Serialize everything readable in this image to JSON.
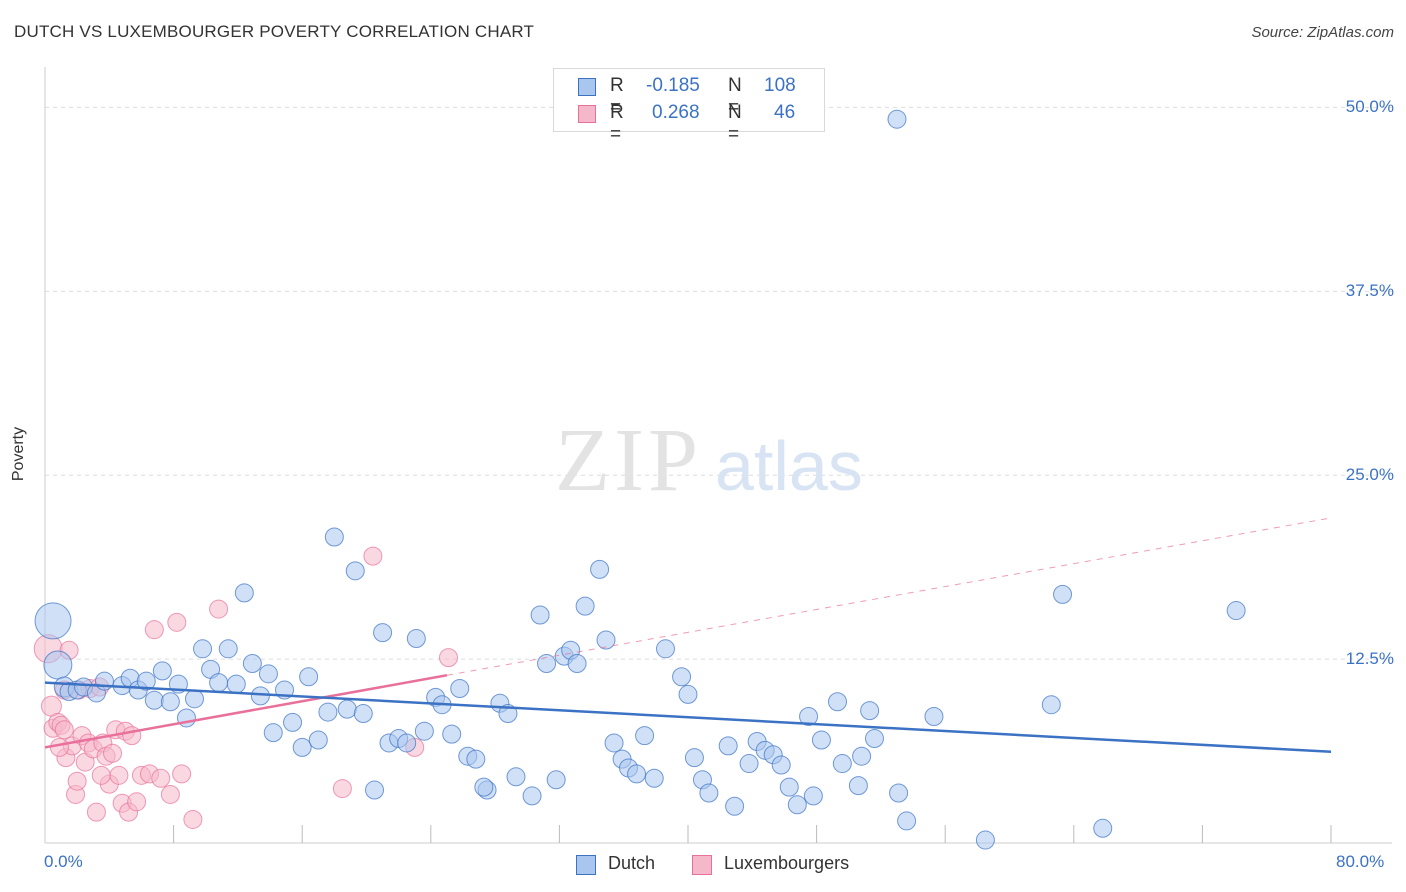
{
  "title": "DUTCH VS LUXEMBOURGER POVERTY CORRELATION CHART",
  "source": "Source: ZipAtlas.com",
  "watermark": {
    "zip": "ZIP",
    "atlas": "atlas"
  },
  "colors": {
    "dutch": "#3b72c4",
    "dutch_fill": "#a9c6ee",
    "lux": "#e8709a",
    "lux_fill": "#f5b8cb",
    "axis_text": "#3b72c4"
  },
  "stats": {
    "dutch": {
      "r_label": "R =",
      "r_value": "-0.185",
      "n_label": "N =",
      "n_value": "108"
    },
    "lux": {
      "r_label": "R =",
      "r_value": "0.268",
      "n_label": "N =",
      "n_value": "46"
    }
  },
  "chart_data": {
    "type": "scatter",
    "title": "DUTCH VS LUXEMBOURGER POVERTY CORRELATION CHART",
    "xlabel": "",
    "ylabel": "Poverty",
    "xlim": [
      0,
      80
    ],
    "ylim": [
      0,
      52
    ],
    "x_tick_labels": [
      "0.0%",
      "80.0%"
    ],
    "y_ticks": [
      12.5,
      25,
      37.5,
      50
    ],
    "y_tick_labels": [
      "12.5%",
      "25.0%",
      "37.5%",
      "50.0%"
    ],
    "grid": true,
    "legend": "bottom-center",
    "series": [
      {
        "name": "Dutch",
        "color": "#3b72c4",
        "trend": {
          "x": [
            0,
            80
          ],
          "y": [
            10.9,
            6.2
          ]
        },
        "points": [
          [
            0.5,
            15.1,
            18
          ],
          [
            0.8,
            12.1,
            14
          ],
          [
            1.2,
            10.6,
            10
          ],
          [
            1.5,
            10.3,
            9
          ],
          [
            2.0,
            10.4,
            9
          ],
          [
            2.4,
            10.6,
            9
          ],
          [
            3.2,
            10.2,
            9
          ],
          [
            3.7,
            11.0,
            9
          ],
          [
            4.8,
            10.7,
            9
          ],
          [
            5.3,
            11.2,
            9
          ],
          [
            5.8,
            10.4,
            9
          ],
          [
            6.3,
            11.0,
            9
          ],
          [
            6.8,
            9.7,
            9
          ],
          [
            7.3,
            11.7,
            9
          ],
          [
            7.8,
            9.6,
            9
          ],
          [
            8.3,
            10.8,
            9
          ],
          [
            8.8,
            8.5,
            9
          ],
          [
            9.3,
            9.8,
            9
          ],
          [
            9.8,
            13.2,
            9
          ],
          [
            10.3,
            11.8,
            9
          ],
          [
            10.8,
            10.9,
            9
          ],
          [
            11.4,
            13.2,
            9
          ],
          [
            11.9,
            10.8,
            9
          ],
          [
            12.4,
            17.0,
            9
          ],
          [
            12.9,
            12.2,
            9
          ],
          [
            13.4,
            10.0,
            9
          ],
          [
            13.9,
            11.5,
            9
          ],
          [
            14.2,
            7.5,
            9
          ],
          [
            14.9,
            10.4,
            9
          ],
          [
            15.4,
            8.2,
            9
          ],
          [
            16.0,
            6.5,
            9
          ],
          [
            16.4,
            11.3,
            9
          ],
          [
            17.0,
            7.0,
            9
          ],
          [
            17.6,
            8.9,
            9
          ],
          [
            18.0,
            20.8,
            9
          ],
          [
            18.8,
            9.1,
            9
          ],
          [
            19.3,
            18.5,
            9
          ],
          [
            19.8,
            8.8,
            9
          ],
          [
            20.5,
            3.6,
            9
          ],
          [
            21.0,
            14.3,
            9
          ],
          [
            21.4,
            6.8,
            9
          ],
          [
            22.0,
            7.1,
            9
          ],
          [
            22.5,
            6.8,
            9
          ],
          [
            23.1,
            13.9,
            9
          ],
          [
            23.6,
            7.6,
            9
          ],
          [
            24.3,
            9.9,
            9
          ],
          [
            24.7,
            9.4,
            9
          ],
          [
            25.3,
            7.4,
            9
          ],
          [
            25.8,
            10.5,
            9
          ],
          [
            26.3,
            5.9,
            9
          ],
          [
            26.8,
            5.7,
            9
          ],
          [
            27.5,
            3.6,
            9
          ],
          [
            27.3,
            3.8,
            9
          ],
          [
            28.3,
            9.5,
            9
          ],
          [
            28.8,
            8.8,
            9
          ],
          [
            29.3,
            4.5,
            9
          ],
          [
            30.3,
            3.2,
            9
          ],
          [
            30.8,
            15.5,
            9
          ],
          [
            31.2,
            12.2,
            9
          ],
          [
            31.8,
            4.3,
            9
          ],
          [
            32.3,
            12.7,
            9
          ],
          [
            32.7,
            13.1,
            9
          ],
          [
            33.1,
            12.2,
            9
          ],
          [
            33.6,
            16.1,
            9
          ],
          [
            34.5,
            18.6,
            9
          ],
          [
            34.9,
            13.8,
            9
          ],
          [
            35.4,
            6.8,
            9
          ],
          [
            35.9,
            5.7,
            9
          ],
          [
            36.3,
            5.1,
            9
          ],
          [
            36.8,
            4.7,
            9
          ],
          [
            37.3,
            7.3,
            9
          ],
          [
            37.9,
            4.4,
            9
          ],
          [
            38.6,
            13.2,
            9
          ],
          [
            39.6,
            11.3,
            9
          ],
          [
            40.0,
            10.1,
            9
          ],
          [
            40.4,
            5.8,
            9
          ],
          [
            40.9,
            4.3,
            9
          ],
          [
            41.3,
            3.4,
            9
          ],
          [
            42.5,
            6.6,
            9
          ],
          [
            42.9,
            2.5,
            9
          ],
          [
            43.8,
            5.4,
            9
          ],
          [
            44.3,
            6.9,
            9
          ],
          [
            44.8,
            6.3,
            9
          ],
          [
            45.3,
            6.0,
            9
          ],
          [
            45.8,
            5.3,
            9
          ],
          [
            46.3,
            3.8,
            9
          ],
          [
            46.8,
            2.6,
            9
          ],
          [
            47.5,
            8.6,
            9
          ],
          [
            47.8,
            3.2,
            9
          ],
          [
            48.3,
            7.0,
            9
          ],
          [
            49.3,
            9.6,
            9
          ],
          [
            49.6,
            5.4,
            9
          ],
          [
            50.6,
            3.9,
            9
          ],
          [
            50.8,
            5.9,
            9
          ],
          [
            51.3,
            9.0,
            9
          ],
          [
            51.6,
            7.1,
            9
          ],
          [
            53.0,
            49.2,
            9
          ],
          [
            53.1,
            3.4,
            9
          ],
          [
            53.6,
            1.5,
            9
          ],
          [
            55.3,
            8.6,
            9
          ],
          [
            58.5,
            0.2,
            9
          ],
          [
            62.6,
            9.4,
            9
          ],
          [
            63.3,
            16.9,
            9
          ],
          [
            65.8,
            1.0,
            9
          ],
          [
            74.1,
            15.8,
            9
          ]
        ]
      },
      {
        "name": "Luxembourgers",
        "color": "#e8709a",
        "trend": {
          "x": [
            0,
            25
          ],
          "y": [
            6.5,
            11.4
          ]
        },
        "trend_dashed": {
          "x": [
            25,
            80
          ],
          "y": [
            11.4,
            22.1
          ]
        },
        "points": [
          [
            0.2,
            13.2,
            14
          ],
          [
            0.4,
            9.3,
            10
          ],
          [
            0.5,
            7.8,
            9
          ],
          [
            0.8,
            8.2,
            9
          ],
          [
            1.0,
            8.0,
            9
          ],
          [
            1.2,
            7.7,
            9
          ],
          [
            1.3,
            5.8,
            9
          ],
          [
            1.5,
            13.1,
            9
          ],
          [
            1.7,
            6.6,
            9
          ],
          [
            1.9,
            3.3,
            9
          ],
          [
            2.1,
            10.4,
            9
          ],
          [
            2.3,
            7.3,
            9
          ],
          [
            2.5,
            5.5,
            9
          ],
          [
            2.7,
            6.8,
            9
          ],
          [
            2.8,
            10.5,
            9
          ],
          [
            3.0,
            6.4,
            9
          ],
          [
            3.2,
            2.1,
            9
          ],
          [
            3.4,
            10.6,
            9
          ],
          [
            3.6,
            6.8,
            9
          ],
          [
            3.8,
            5.9,
            9
          ],
          [
            4.0,
            4.0,
            9
          ],
          [
            4.2,
            6.1,
            9
          ],
          [
            4.4,
            7.7,
            9
          ],
          [
            4.6,
            4.6,
            9
          ],
          [
            4.8,
            2.7,
            9
          ],
          [
            5.0,
            7.6,
            9
          ],
          [
            5.2,
            2.1,
            9
          ],
          [
            5.4,
            7.3,
            9
          ],
          [
            5.7,
            2.8,
            9
          ],
          [
            6.0,
            4.6,
            9
          ],
          [
            6.5,
            4.7,
            9
          ],
          [
            6.8,
            14.5,
            9
          ],
          [
            7.2,
            4.4,
            9
          ],
          [
            7.8,
            3.3,
            9
          ],
          [
            8.2,
            15.0,
            9
          ],
          [
            8.5,
            4.7,
            9
          ],
          [
            9.2,
            1.6,
            9
          ],
          [
            10.8,
            15.9,
            9
          ],
          [
            18.5,
            3.7,
            9
          ],
          [
            20.4,
            19.5,
            9
          ],
          [
            23.0,
            6.5,
            9
          ],
          [
            25.1,
            12.6,
            9
          ],
          [
            1.2,
            10.4,
            9
          ],
          [
            2.0,
            4.2,
            9
          ],
          [
            3.5,
            4.6,
            9
          ],
          [
            0.9,
            6.5,
            9
          ]
        ]
      }
    ]
  }
}
